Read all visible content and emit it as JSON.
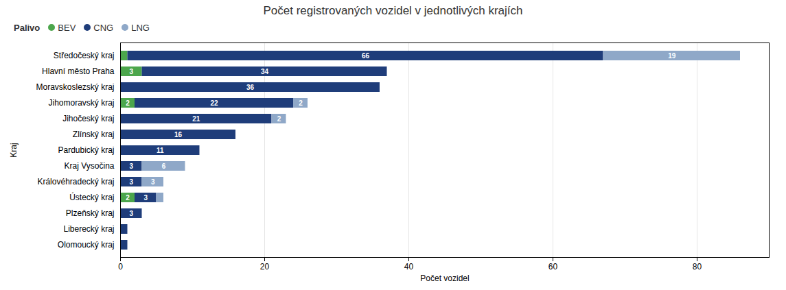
{
  "chart_data": {
    "type": "bar",
    "orientation": "horizontal",
    "stacked": true,
    "title": "Počet registrovaných vozidel v jednotlivých krajích",
    "xlabel": "Počet vozidel",
    "ylabel": "Kraj",
    "legend_title": "Palivo",
    "categories": [
      "Středočeský kraj",
      "Hlavní město Praha",
      "Moravskoslezský kraj",
      "Jihomoravský kraj",
      "Jihočeský kraj",
      "Zlínský kraj",
      "Pardubický kraj",
      "Kraj Vysočina",
      "Královéhradecký kraj",
      "Ústecký kraj",
      "Plzeňský kraj",
      "Liberecký kraj",
      "Olomoucký kraj"
    ],
    "series": [
      {
        "name": "BEV",
        "color": "#4ca64c",
        "values": [
          1,
          3,
          0,
          2,
          0,
          0,
          0,
          0,
          0,
          2,
          0,
          0,
          0
        ],
        "value_labels": [
          null,
          "3",
          null,
          "2",
          null,
          null,
          null,
          null,
          null,
          "2",
          null,
          null,
          null
        ]
      },
      {
        "name": "CNG",
        "color": "#1f3d7a",
        "values": [
          66,
          34,
          36,
          22,
          21,
          16,
          11,
          3,
          3,
          3,
          3,
          1,
          1
        ],
        "value_labels": [
          "66",
          "34",
          "36",
          "22",
          "21",
          "16",
          "11",
          "3",
          "3",
          "3",
          "3",
          null,
          null
        ]
      },
      {
        "name": "LNG",
        "color": "#8fa8c8",
        "values": [
          19,
          0,
          0,
          2,
          2,
          0,
          0,
          6,
          3,
          1,
          0,
          0,
          0
        ],
        "value_labels": [
          "19",
          null,
          null,
          "2",
          "2",
          null,
          null,
          "6",
          "3",
          null,
          null,
          null,
          null
        ]
      }
    ],
    "xlim": [
      0,
      90
    ],
    "xticks": [
      0,
      20,
      40,
      60,
      80
    ],
    "grid": true,
    "legend": "upper left",
    "data_labels": true
  }
}
